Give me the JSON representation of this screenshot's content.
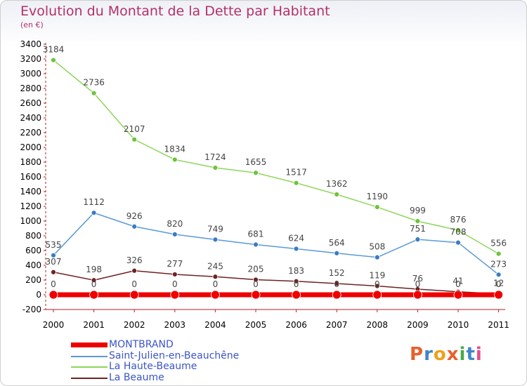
{
  "title": "Evolution du Montant de la Dette par Habitant",
  "subtitle": "(en €)",
  "logo": {
    "text": "Proxiti",
    "colors": [
      "#e8612c",
      "#3f86c9",
      "#f0a01a",
      "#e8612c",
      "#4aa84a",
      "#3f86c9",
      "#e84b8a"
    ]
  },
  "chart_data": {
    "type": "line",
    "x": [
      "2000",
      "2001",
      "2002",
      "2003",
      "2004",
      "2005",
      "2006",
      "2007",
      "2008",
      "2009",
      "2010",
      "2011"
    ],
    "ylim": [
      -200,
      3400
    ],
    "yticks": [
      "3400",
      "3200",
      "3000",
      "2800",
      "2600",
      "2400",
      "2200",
      "2000",
      "1800",
      "1600",
      "1400",
      "1200",
      "1000",
      "800",
      "600",
      "400",
      "200",
      "0",
      "-200"
    ],
    "grid": false,
    "legend_position": "bottom-left",
    "series": [
      {
        "name": "La Beaume",
        "color": "#6e2222",
        "point": "#6e2222",
        "width": 1.5,
        "radius": 3.5,
        "values": [
          307,
          198,
          326,
          277,
          245,
          205,
          183,
          152,
          119,
          76,
          41,
          12
        ],
        "labels": [
          "307",
          "198",
          "326",
          "277",
          "245",
          "205",
          "183",
          "152",
          "119",
          "76",
          "41",
          "12"
        ]
      },
      {
        "name": "Saint-Julien-en-Beauchêne",
        "color": "#5a9ad6",
        "point": "#3a7cc4",
        "width": 1.5,
        "radius": 3.5,
        "values": [
          535,
          1112,
          926,
          820,
          749,
          681,
          624,
          564,
          508,
          751,
          708,
          273
        ],
        "labels": [
          "535",
          "1112",
          "926",
          "820",
          "749",
          "681",
          "624",
          "564",
          "508",
          "751",
          "708",
          "273"
        ]
      },
      {
        "name": "La Haute-Beaume",
        "color": "#8ed65a",
        "point": "#6cc43a",
        "width": 1.5,
        "radius": 3.5,
        "values": [
          3184,
          2736,
          2107,
          1834,
          1724,
          1655,
          1517,
          1362,
          1190,
          999,
          876,
          556
        ],
        "labels": [
          "3184",
          "2736",
          "2107",
          "1834",
          "1724",
          "1655",
          "1517",
          "1362",
          "1190",
          "999",
          "876",
          "556"
        ]
      },
      {
        "name": "MONTBRAND",
        "color": "#ee0000",
        "point": "#ee0000",
        "width": 7,
        "radius": 6,
        "values": [
          0,
          0,
          0,
          0,
          0,
          0,
          0,
          0,
          0,
          0,
          0,
          0
        ],
        "labels": [
          "0",
          "0",
          "0",
          "0",
          "0",
          "0",
          "0",
          "0",
          "0",
          "0",
          "0",
          "0"
        ]
      }
    ],
    "legend": [
      {
        "name": "MONTBRAND",
        "color": "#ee0000",
        "thick": true
      },
      {
        "name": "Saint-Julien-en-Beauchêne",
        "color": "#5a9ad6",
        "thick": false
      },
      {
        "name": "La Haute-Beaume",
        "color": "#8ed65a",
        "thick": false
      },
      {
        "name": "La Beaume",
        "color": "#6e2222",
        "thick": false
      }
    ]
  }
}
